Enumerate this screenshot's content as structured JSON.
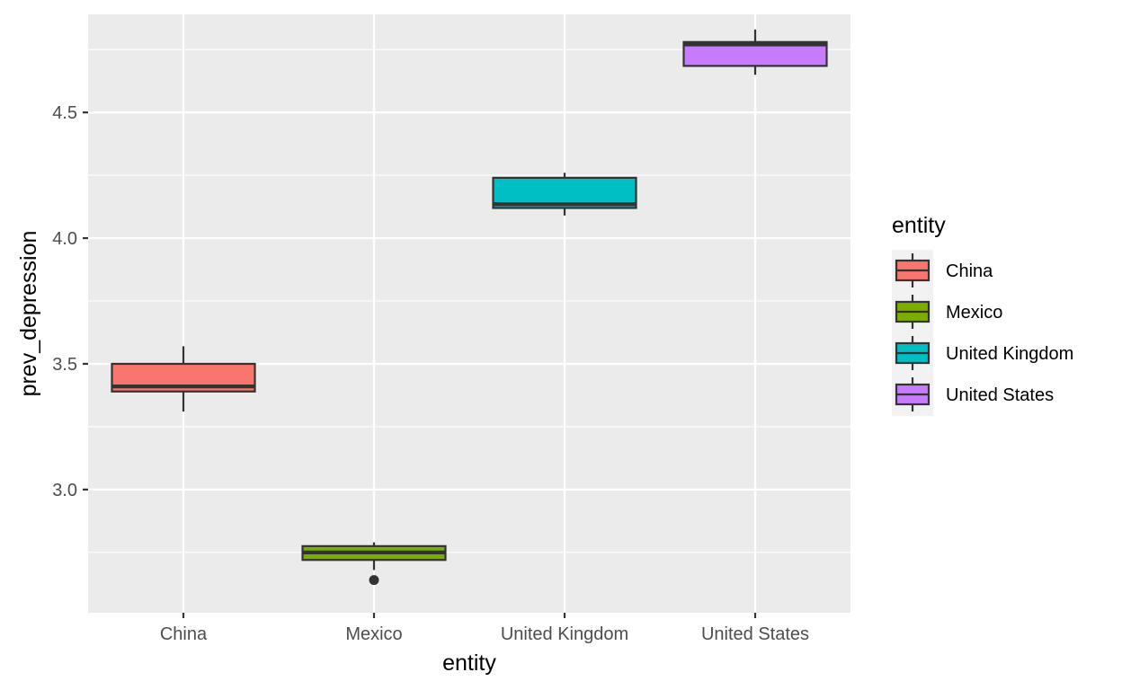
{
  "chart_data": {
    "type": "boxplot",
    "xlabel": "entity",
    "ylabel": "prev_depression",
    "ylim": [
      2.51,
      4.89
    ],
    "y_ticks": [
      3.0,
      3.5,
      4.0,
      4.5
    ],
    "y_tick_labels": [
      "3.0",
      "3.5",
      "4.0",
      "4.5"
    ],
    "grid": true,
    "legend": {
      "title": "entity",
      "position": "right"
    },
    "categories": [
      "China",
      "Mexico",
      "United Kingdom",
      "United States"
    ],
    "series": [
      {
        "name": "China",
        "color": "#F8766D",
        "whisker_low": 3.31,
        "q1": 3.39,
        "median": 3.41,
        "q3": 3.5,
        "whisker_high": 3.57,
        "outliers": []
      },
      {
        "name": "Mexico",
        "color": "#7CAE00",
        "whisker_low": 2.68,
        "q1": 2.72,
        "median": 2.75,
        "q3": 2.775,
        "whisker_high": 2.79,
        "outliers": [
          2.64
        ]
      },
      {
        "name": "United Kingdom",
        "color": "#00BFC4",
        "whisker_low": 4.09,
        "q1": 4.12,
        "median": 4.135,
        "q3": 4.24,
        "whisker_high": 4.26,
        "outliers": []
      },
      {
        "name": "United States",
        "color": "#C77CFF",
        "whisker_low": 4.65,
        "q1": 4.685,
        "median": 4.77,
        "q3": 4.78,
        "whisker_high": 4.83,
        "outliers": []
      }
    ]
  }
}
